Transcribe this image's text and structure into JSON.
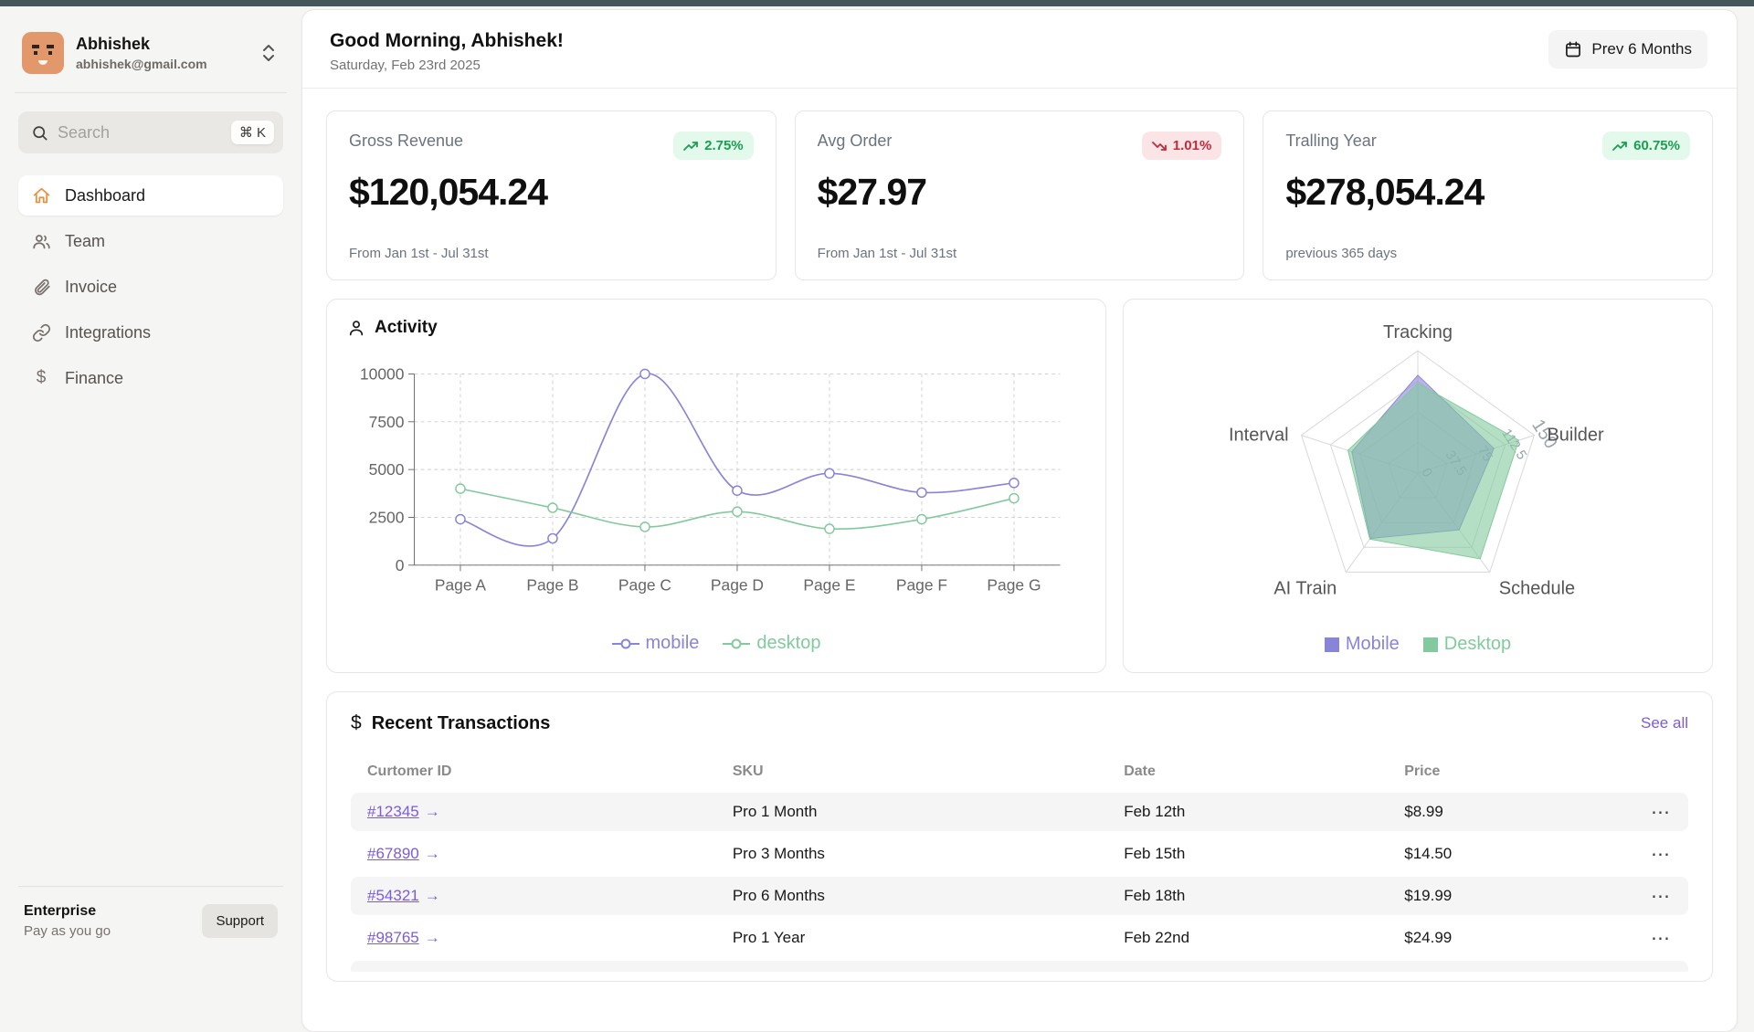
{
  "sidebar": {
    "user": {
      "name": "Abhishek",
      "email": "abhishek@gmail.com"
    },
    "search": {
      "placeholder": "Search",
      "shortcut": "⌘ K"
    },
    "items": [
      {
        "label": "Dashboard",
        "icon": "home",
        "active": true
      },
      {
        "label": "Team",
        "icon": "users",
        "active": false
      },
      {
        "label": "Invoice",
        "icon": "paperclip",
        "active": false
      },
      {
        "label": "Integrations",
        "icon": "link",
        "active": false
      },
      {
        "label": "Finance",
        "icon": "dollar",
        "active": false
      }
    ],
    "footer": {
      "plan": "Enterprise",
      "plan_sub": "Pay as you go",
      "support_label": "Support"
    }
  },
  "header": {
    "greeting": "Good Morning, Abhishek!",
    "date": "Saturday, Feb 23rd 2025",
    "range_button": "Prev 6 Months"
  },
  "stats": [
    {
      "label": "Gross Revenue",
      "value": "$120,054.24",
      "change": "2.75%",
      "direction": "up",
      "footnote": "From Jan 1st - Jul 31st"
    },
    {
      "label": "Avg Order",
      "value": "$27.97",
      "change": "1.01%",
      "direction": "down",
      "footnote": "From Jan 1st - Jul 31st"
    },
    {
      "label": "Tralling Year",
      "value": "$278,054.24",
      "change": "60.75%",
      "direction": "up",
      "footnote": "previous 365 days"
    }
  ],
  "activity": {
    "title": "Activity"
  },
  "transactions": {
    "title": "Recent Transactions",
    "see_all": "See all",
    "columns": [
      "Curtomer ID",
      "SKU",
      "Date",
      "Price"
    ],
    "rows": [
      {
        "id": "#12345",
        "arrow": "→",
        "sku": "Pro 1 Month",
        "date": "Feb 12th",
        "price": "$8.99",
        "actions": "⋯"
      },
      {
        "id": "#67890",
        "arrow": "→",
        "sku": "Pro 3 Months",
        "date": "Feb 15th",
        "price": "$14.50",
        "actions": "⋯"
      },
      {
        "id": "#54321",
        "arrow": "→",
        "sku": "Pro 6 Months",
        "date": "Feb 18th",
        "price": "$19.99",
        "actions": "⋯"
      },
      {
        "id": "#98765",
        "arrow": "→",
        "sku": "Pro 1 Year",
        "date": "Feb 22nd",
        "price": "$24.99",
        "actions": "⋯"
      }
    ]
  },
  "colors": {
    "accent_purple": "#8884d8",
    "accent_green": "#82ca9d",
    "link_purple": "#7c5cd6",
    "badge_up_bg": "#e3f9ec",
    "badge_up_text": "#1a9e52",
    "badge_down_bg": "#fbe4e6",
    "badge_down_text": "#c22b3b",
    "topbar": "#44585c",
    "avatar_bg": "#e2986a"
  },
  "chart_data": [
    {
      "type": "line",
      "title": "Activity",
      "categories": [
        "Page A",
        "Page B",
        "Page C",
        "Page D",
        "Page E",
        "Page F",
        "Page G"
      ],
      "series": [
        {
          "name": "mobile",
          "color": "#8884d8",
          "values": [
            2400,
            1400,
            10000,
            3900,
            4800,
            3800,
            4300
          ]
        },
        {
          "name": "desktop",
          "color": "#82ca9d",
          "values": [
            4000,
            3000,
            2000,
            2800,
            1900,
            2400,
            3500
          ]
        }
      ],
      "xlabel": "",
      "ylabel": "",
      "ylim": [
        0,
        10000
      ],
      "yticks": [
        0,
        2500,
        5000,
        7500,
        10000
      ],
      "grid": "dashed",
      "legend_position": "bottom"
    },
    {
      "type": "radar",
      "categories": [
        "Tracking",
        "Builder",
        "Schedule",
        "AI Train",
        "Interval"
      ],
      "series": [
        {
          "name": "Mobile",
          "color": "#8884d8",
          "values": [
            120,
            98,
            86,
            99,
            85
          ]
        },
        {
          "name": "Desktop",
          "color": "#82ca9d",
          "values": [
            110,
            130,
            130,
            100,
            90
          ]
        }
      ],
      "rmax": 150,
      "rticks": [
        0,
        37.5,
        75,
        112.5,
        150
      ],
      "legend_position": "bottom"
    }
  ]
}
